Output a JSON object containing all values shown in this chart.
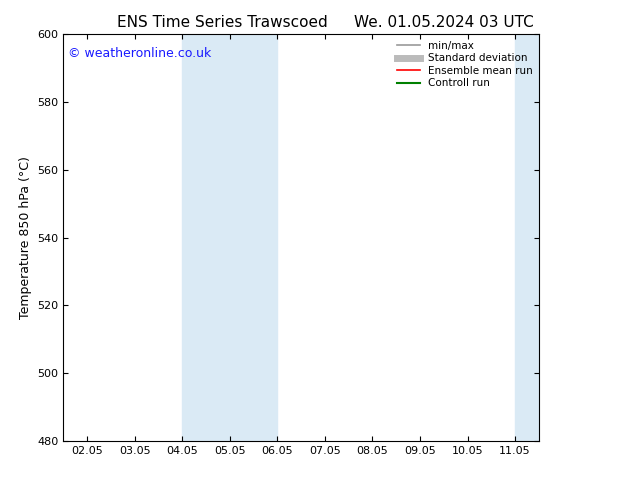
{
  "title_left": "ENS Time Series Trawscoed",
  "title_right": "We. 01.05.2024 03 UTC",
  "ylabel": "Temperature 850 hPa (°C)",
  "ylim": [
    480,
    600
  ],
  "yticks": [
    480,
    500,
    520,
    540,
    560,
    580,
    600
  ],
  "xtick_labels": [
    "02.05",
    "03.05",
    "04.05",
    "05.05",
    "06.05",
    "07.05",
    "08.05",
    "09.05",
    "10.05",
    "11.05"
  ],
  "xtick_positions": [
    0,
    1,
    2,
    3,
    4,
    5,
    6,
    7,
    8,
    9
  ],
  "xlim": [
    -0.5,
    9.5
  ],
  "shaded_bands": [
    {
      "xmin": 2.0,
      "xmax": 4.0,
      "color": "#daeaf5"
    },
    {
      "xmin": 9.0,
      "xmax": 9.5,
      "color": "#daeaf5"
    }
  ],
  "watermark": "© weatheronline.co.uk",
  "watermark_color": "#1a1aff",
  "watermark_fontsize": 9,
  "legend_entries": [
    {
      "label": "min/max",
      "color": "#999999",
      "lw": 1.2
    },
    {
      "label": "Standard deviation",
      "color": "#bbbbbb",
      "lw": 5
    },
    {
      "label": "Ensemble mean run",
      "color": "#ff0000",
      "lw": 1.2
    },
    {
      "label": "Controll run",
      "color": "#008000",
      "lw": 1.5
    }
  ],
  "title_fontsize": 11,
  "tick_labelsize": 8,
  "ylabel_fontsize": 9,
  "bg_color": "#ffffff"
}
